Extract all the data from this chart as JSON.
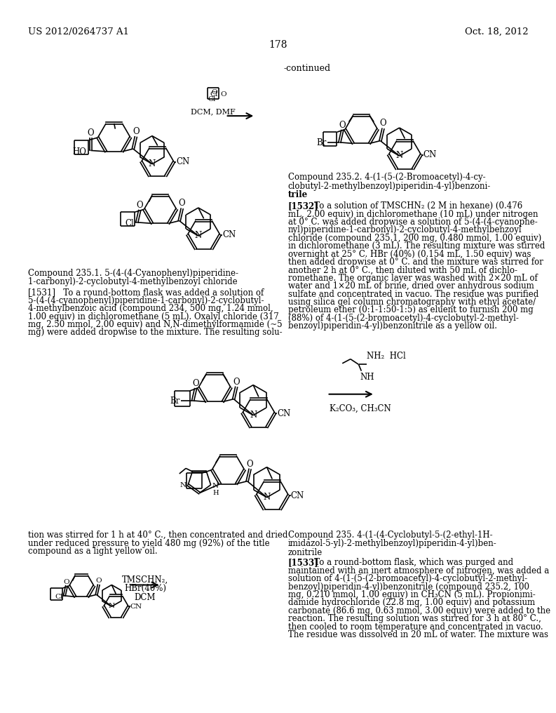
{
  "page_header_left": "US 2012/0264737 A1",
  "page_header_right": "Oct. 18, 2012",
  "page_number": "178",
  "continued_label": "-continued",
  "compound_235_1_line1": "Compound 235.1. 5-(4-(4-Cyanophenyl)piperidine-",
  "compound_235_1_line2": "1-carbonyl)-2-cyclobutyl-4-methylbenzoyl chloride",
  "compound_235_2_line1": "Compound 235.2. 4-(1-(5-(2-Bromoacetyl)-4-cy-",
  "compound_235_2_line2": "clobutyl-2-methylbenzoyl)piperidin-4-yl)benzoni-",
  "compound_235_2_line3": "trile",
  "compound_235_line1": "Compound 235. 4-(1-(4-Cyclobutyl-5-(2-ethyl-1H-",
  "compound_235_line2": "imidazol-5-yl)-2-methylbenzoyl)piperidin-4-yl)ben-",
  "compound_235_line3": "zonitrile",
  "p1531_lines": [
    "[1531]   To a round-bottom flask was added a solution of",
    "5-(4-(4-cyanophenyl)piperidine-1-carbonyl)-2-cyclobutyl-",
    "4-methylbenzoic acid (compound 234, 500 mg, 1.24 mmol,",
    "1.00 equiv) in dichloromethane (5 mL). Oxalyl chloride (317",
    "mg, 2.50 mmol, 2.00 equiv) and N,N-dimethylformamide (~5",
    "mg) were added dropwise to the mixture. The resulting solu-"
  ],
  "p1531_cont_lines": [
    "tion was stirred for 1 h at 40° C., then concentrated and dried",
    "under reduced pressure to yield 480 mg (92%) of the title",
    "compound as a light yellow oil."
  ],
  "p1532_lines": [
    "[1532]   To a solution of TMSCHN₂ (2 M in hexane) (0.476",
    "mL, 2.00 equiv) in dichloromethane (10 mL) under nitrogen",
    "at 0° C. was added dropwise a solution of 5-(4-(4-cyanophe-",
    "nyl)piperidine-1-carbonyl)-2-cyclobutyl-4-methylbenzoyl",
    "chloride (compound 235.1, 200 mg, 0.480 mmol, 1.00 equiv)",
    "in dichloromethane (3 mL). The resulting mixture was stirred",
    "overnight at 25° C. HBr (40%) (0.154 mL, 1.50 equiv) was",
    "then added dropwise at 0° C. and the mixture was stirred for",
    "another 2 h at 0° C., then diluted with 50 mL of dichlo-",
    "romethane. The organic layer was washed with 2×20 mL of",
    "water and 1×20 mL of brine, dried over anhydrous sodium",
    "sulfate and concentrated in vacuo. The residue was purified",
    "using silica gel column chromatography with ethyl acetate/",
    "petroleum ether (0:1-1:50-1:5) as eluent to furnish 200 mg",
    "(88%) of 4-(1-(5-(2-bromoacetyl)-4-cyclobutyl-2-methyl-",
    "benzoyl)piperidin-4-yl)benzonitrile as a yellow oil."
  ],
  "p1533_lines": [
    "[1533]   To a round-bottom flask, which was purged and",
    "maintained with an inert atmosphere of nitrogen, was added a",
    "solution of 4-(1-(5-(2-bromoacetyl)-4-cyclobutyl-2-methyl-",
    "benzoyl)piperidin-4-yl)benzonitrile (compound 235.2, 100",
    "mg, 0.210 mmol, 1.00 equiv) in CH₃CN (5 mL). Propionimi-",
    "damide hydrochloride (22.8 mg, 1.00 equiv) and potassium",
    "carbonate (86.6 mg, 0.63 mmol, 3.00 equiv) were added to the",
    "reaction. The resulting solution was stirred for 3 h at 80° C.,",
    "then cooled to room temperature and concentrated in vacuo.",
    "The residue was dissolved in 20 mL of water. The mixture was"
  ]
}
